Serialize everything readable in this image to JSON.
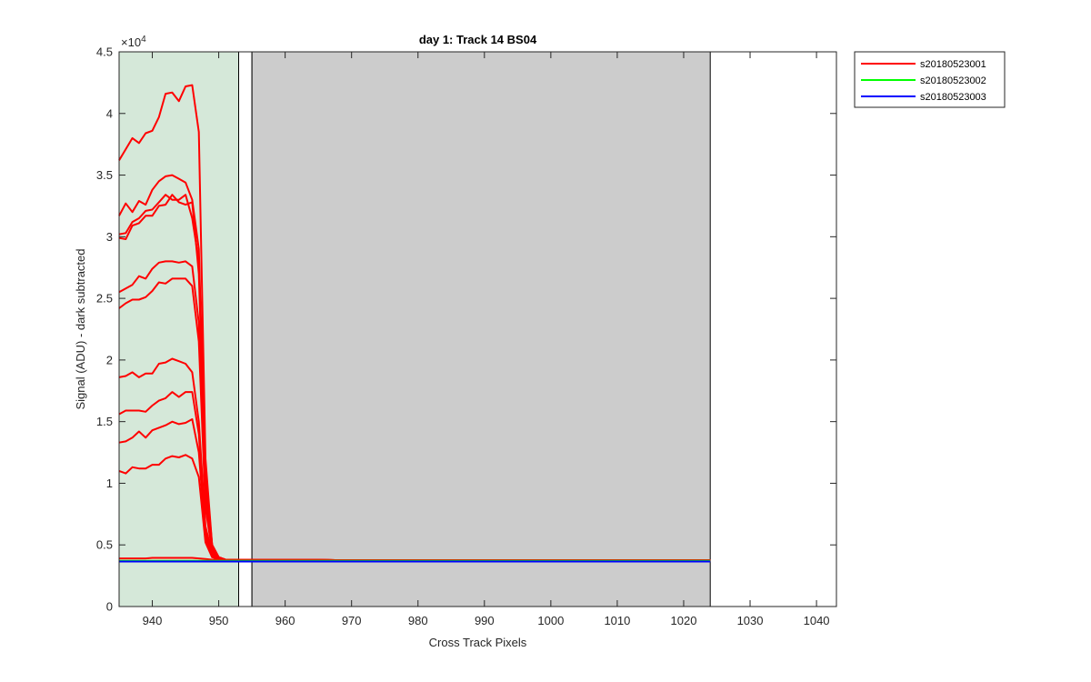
{
  "chart_data": {
    "type": "line",
    "title": "day 1: Track 14  BS04",
    "xlabel": "Cross Track Pixels",
    "ylabel": "Signal (ADU) - dark subtracted",
    "xlim": [
      935,
      1043
    ],
    "ylim": [
      0,
      45000
    ],
    "y_exponent_label": "×10^4",
    "y_exponent_base": "×10",
    "y_exponent_power": "4",
    "x_ticks": [
      940,
      950,
      960,
      970,
      980,
      990,
      1000,
      1010,
      1020,
      1030,
      1040
    ],
    "y_ticks": [
      0,
      5000,
      10000,
      15000,
      20000,
      25000,
      30000,
      35000,
      40000,
      45000
    ],
    "y_tick_labels": [
      "0",
      "0.5",
      "1",
      "1.5",
      "2",
      "2.5",
      "3",
      "3.5",
      "4",
      "4.5"
    ],
    "grid": false,
    "legend_position": "outside-top-right",
    "regions": [
      {
        "type": "shaded",
        "x": [
          935,
          953
        ],
        "color": "#d5e8d9"
      },
      {
        "type": "outline",
        "x": [
          953,
          955
        ],
        "color": "#ffffff"
      },
      {
        "type": "shaded",
        "x": [
          955,
          1024
        ],
        "color": "#cccccc"
      }
    ],
    "x": [
      935,
      936,
      937,
      938,
      939,
      940,
      941,
      942,
      943,
      944,
      945,
      946,
      947,
      948,
      949,
      950,
      951,
      952,
      955,
      960,
      970,
      980,
      990,
      1000,
      1010,
      1020,
      1024
    ],
    "series": [
      {
        "name": "s20180523001",
        "color": "#ff0000",
        "traces": [
          [
            36200,
            37100,
            38000,
            37600,
            38400,
            38600,
            39700,
            41600,
            41700,
            41000,
            42200,
            42300,
            38500,
            12000,
            5000,
            4000,
            3800,
            3800,
            3800,
            3800,
            3750,
            3750,
            3750,
            3750,
            3750,
            3750,
            3750
          ],
          [
            31700,
            32700,
            32000,
            32900,
            32600,
            33800,
            34500,
            34900,
            35000,
            34700,
            34400,
            33000,
            29000,
            11000,
            5000,
            4000,
            3800,
            3800,
            3800,
            3800,
            3750,
            3750,
            3750,
            3750,
            3750,
            3750,
            3750
          ],
          [
            30200,
            30300,
            31200,
            31500,
            32100,
            32200,
            32800,
            33400,
            33000,
            33000,
            33400,
            31500,
            28000,
            10000,
            5000,
            4000,
            3800,
            3800,
            3800,
            3800,
            3750,
            3750,
            3750,
            3750,
            3750,
            3750,
            3750
          ],
          [
            29900,
            29800,
            30900,
            31100,
            31700,
            31700,
            32500,
            32600,
            33400,
            32800,
            32600,
            32800,
            27000,
            9500,
            4800,
            4000,
            3800,
            3800,
            3800,
            3800,
            3750,
            3750,
            3750,
            3750,
            3750,
            3750,
            3750
          ],
          [
            25500,
            25800,
            26100,
            26800,
            26600,
            27400,
            27900,
            28000,
            28000,
            27900,
            28000,
            27600,
            23000,
            8500,
            4600,
            4000,
            3800,
            3800,
            3800,
            3800,
            3750,
            3750,
            3750,
            3750,
            3750,
            3750,
            3750
          ],
          [
            24200,
            24600,
            24900,
            24900,
            25100,
            25600,
            26300,
            26200,
            26600,
            26600,
            26600,
            26000,
            21500,
            8000,
            4500,
            3900,
            3800,
            3800,
            3800,
            3800,
            3750,
            3750,
            3750,
            3750,
            3750,
            3750,
            3750
          ],
          [
            18600,
            18700,
            19000,
            18600,
            18900,
            18900,
            19700,
            19800,
            20100,
            19900,
            19700,
            19000,
            15000,
            6500,
            4300,
            3900,
            3800,
            3800,
            3800,
            3800,
            3750,
            3750,
            3750,
            3750,
            3750,
            3750,
            3750
          ],
          [
            15600,
            15900,
            15900,
            15900,
            15800,
            16300,
            16700,
            16900,
            17400,
            17000,
            17400,
            17400,
            14000,
            6000,
            4200,
            3900,
            3800,
            3800,
            3800,
            3800,
            3750,
            3750,
            3750,
            3750,
            3750,
            3750,
            3750
          ],
          [
            13300,
            13400,
            13700,
            14200,
            13700,
            14300,
            14500,
            14700,
            15000,
            14800,
            14900,
            15200,
            12500,
            5600,
            4100,
            3900,
            3800,
            3800,
            3800,
            3800,
            3750,
            3750,
            3750,
            3750,
            3750,
            3750,
            3750
          ],
          [
            11000,
            10800,
            11300,
            11200,
            11200,
            11500,
            11500,
            12000,
            12200,
            12100,
            12300,
            12000,
            10500,
            5200,
            4000,
            3850,
            3800,
            3800,
            3800,
            3800,
            3750,
            3750,
            3750,
            3750,
            3750,
            3750,
            3750
          ],
          [
            3900,
            3900,
            3900,
            3900,
            3900,
            3950,
            3950,
            3950,
            3950,
            3950,
            3950,
            3950,
            3900,
            3850,
            3800,
            3800,
            3800,
            3800,
            3800,
            3800,
            3750,
            3750,
            3750,
            3750,
            3750,
            3750,
            3750
          ]
        ]
      },
      {
        "name": "s20180523002",
        "color": "#00ff00",
        "traces": [
          [
            3700,
            3700,
            3700,
            3700,
            3700,
            3700,
            3700,
            3700,
            3700,
            3700,
            3700,
            3700,
            3700,
            3700,
            3700,
            3700,
            3700,
            3700,
            3700,
            3700,
            3700,
            3700,
            3700,
            3700,
            3700,
            3700,
            3700
          ]
        ]
      },
      {
        "name": "s20180523003",
        "color": "#0000ff",
        "traces": [
          [
            3650,
            3650,
            3650,
            3650,
            3650,
            3650,
            3650,
            3650,
            3650,
            3650,
            3650,
            3650,
            3650,
            3650,
            3650,
            3650,
            3650,
            3650,
            3650,
            3650,
            3650,
            3650,
            3650,
            3650,
            3650,
            3650,
            3650
          ]
        ]
      }
    ]
  }
}
